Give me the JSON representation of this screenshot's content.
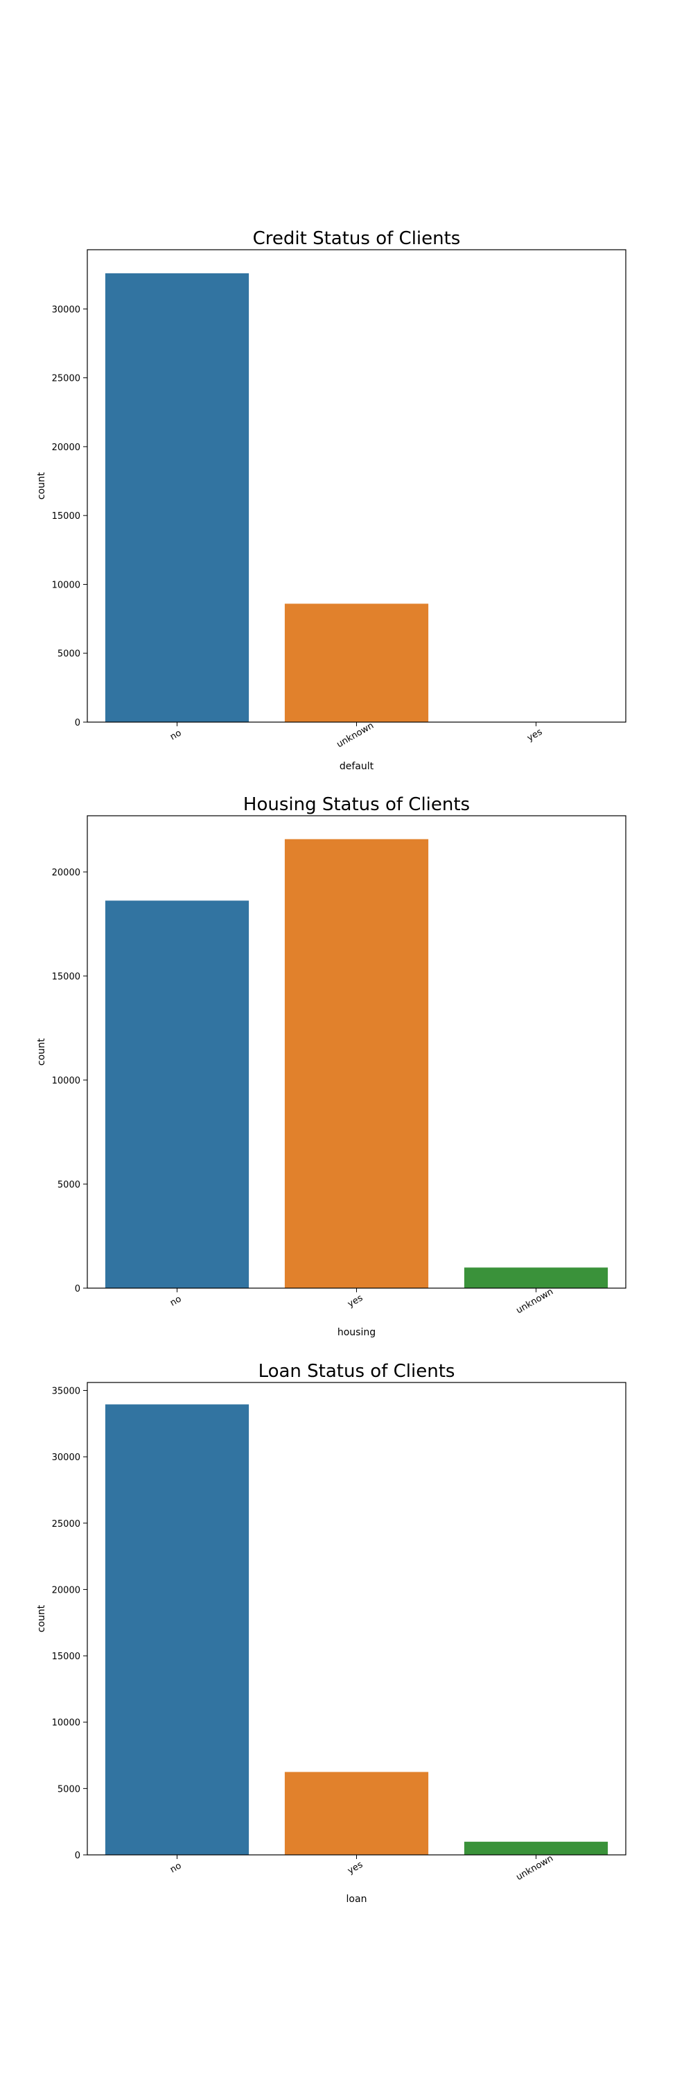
{
  "chart_data": [
    {
      "type": "bar",
      "title": "Credit Status of Clients",
      "xlabel": "default",
      "ylabel": "count",
      "categories": [
        "no",
        "unknown",
        "yes"
      ],
      "values": [
        32588,
        8597,
        3
      ],
      "colors": [
        "#3274a1",
        "#e1812c",
        "#3a923a"
      ],
      "ylim": [
        0,
        34300
      ],
      "yticks": [
        0,
        5000,
        10000,
        15000,
        20000,
        25000,
        30000
      ],
      "ytick_labels": [
        "0",
        "5000",
        "10000",
        "15000",
        "20000",
        "25000",
        "30000"
      ],
      "xtick_rotation": 30,
      "grid": false
    },
    {
      "type": "bar",
      "title": "Housing Status of Clients",
      "xlabel": "housing",
      "ylabel": "count",
      "categories": [
        "no",
        "yes",
        "unknown"
      ],
      "values": [
        18622,
        21576,
        990
      ],
      "colors": [
        "#3274a1",
        "#e1812c",
        "#3a923a"
      ],
      "ylim": [
        0,
        22700
      ],
      "yticks": [
        0,
        5000,
        10000,
        15000,
        20000
      ],
      "ytick_labels": [
        "0",
        "5000",
        "10000",
        "15000",
        "20000"
      ],
      "xtick_rotation": 30,
      "grid": false
    },
    {
      "type": "bar",
      "title": "Loan Status of Clients",
      "xlabel": "loan",
      "ylabel": "count",
      "categories": [
        "no",
        "yes",
        "unknown"
      ],
      "values": [
        33950,
        6248,
        990
      ],
      "colors": [
        "#3274a1",
        "#e1812c",
        "#3a923a"
      ],
      "ylim": [
        0,
        35600
      ],
      "yticks": [
        0,
        5000,
        10000,
        15000,
        20000,
        25000,
        30000,
        35000
      ],
      "ytick_labels": [
        "0",
        "5000",
        "10000",
        "15000",
        "20000",
        "25000",
        "30000",
        "35000"
      ],
      "xtick_rotation": 30,
      "grid": false
    }
  ]
}
